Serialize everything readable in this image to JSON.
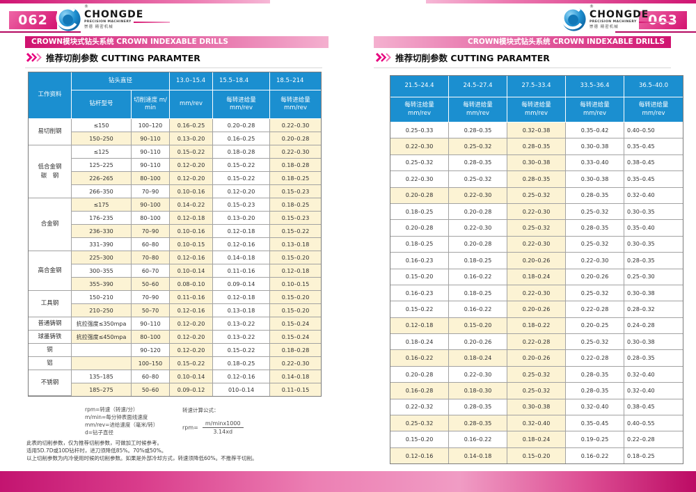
{
  "brand": {
    "reg": "®",
    "name": "CHONGDE",
    "sub": "PRECISION MACHINERY",
    "cn": "崇德 精密机械"
  },
  "left_page": {
    "page_number": "062",
    "section_title": "CROWN模块式钻头系统  CROWN INDEXABLE DRILLS",
    "heading": "推荐切削参数 CUTTING PARAMTER",
    "table": {
      "corner_header": "工作资料",
      "diameter_header": "钻头直径",
      "range_headers": [
        "13.0–15.4",
        "15.5–18.4",
        "18.5–214"
      ],
      "sub_headers": [
        "钻杆型号",
        "切削速度  m/\nmin",
        "mm/rev",
        "每转进给量\nmm/rev",
        "每转进给量\nmm/rev"
      ],
      "groups": [
        {
          "material": "易切削钢",
          "rows": [
            {
              "cells": [
                "≤150",
                "100–120",
                "0.16–0.25",
                "0.20–0.28",
                "0.22–0.30"
              ],
              "shaded": false
            },
            {
              "cells": [
                "150–250",
                "90–110",
                "0.13–0.20",
                "0.16–0.25",
                "0.20–0.28"
              ],
              "shaded": true
            }
          ]
        },
        {
          "material": "低合金钢\n碳　钢",
          "rows": [
            {
              "cells": [
                "≤125",
                "90–110",
                "0.15–0.22",
                "0.18–0.28",
                "0.22–0.30"
              ],
              "shaded": false
            },
            {
              "cells": [
                "125–225",
                "90–110",
                "0.12–0.20",
                "0.15–0.22",
                "0.18–0.28"
              ],
              "shaded": false
            },
            {
              "cells": [
                "226–265",
                "80–100",
                "0.12–0.20",
                "0.15–0.22",
                "0.18–0.25"
              ],
              "shaded": true
            },
            {
              "cells": [
                "266–350",
                "70–90",
                "0.10–0.16",
                "0.12–0.20",
                "0.15–0.23"
              ],
              "shaded": false
            }
          ]
        },
        {
          "material": "合金钢",
          "rows": [
            {
              "cells": [
                "≤175",
                "90–100",
                "0.14–0.22",
                "0.15–0.23",
                "0.18–0.25"
              ],
              "shaded": true
            },
            {
              "cells": [
                "176–235",
                "80–100",
                "0.12–0.18",
                "0.13–0.20",
                "0.15–0.23"
              ],
              "shaded": false
            },
            {
              "cells": [
                "236–330",
                "70–90",
                "0.10–0.16",
                "0.12–0.18",
                "0.15–0.22"
              ],
              "shaded": true
            },
            {
              "cells": [
                "331–390",
                "60–80",
                "0.10–0.15",
                "0.12–0.16",
                "0.13–0.18"
              ],
              "shaded": false
            }
          ]
        },
        {
          "material": "高合金钢",
          "rows": [
            {
              "cells": [
                "225–300",
                "70–80",
                "0.12–0.16",
                "0.14–0.18",
                "0.15–0.20"
              ],
              "shaded": true
            },
            {
              "cells": [
                "300–355",
                "60–70",
                "0.10–0.14",
                "0.11–0.16",
                "0.12–0.18"
              ],
              "shaded": false
            },
            {
              "cells": [
                "355–390",
                "50–60",
                "0.08–0.10",
                "0.09–0.14",
                "0.10–0.15"
              ],
              "shaded": true
            }
          ]
        },
        {
          "material": "工具钢",
          "rows": [
            {
              "cells": [
                "150–210",
                "70–90",
                "0.11–0.16",
                "0.12–0.18",
                "0.15–0.20"
              ],
              "shaded": false
            },
            {
              "cells": [
                "210–250",
                "50–70",
                "0.12–0.16",
                "0.13–0.18",
                "0.15–0.20"
              ],
              "shaded": true
            }
          ]
        },
        {
          "material": "普通铸钢",
          "rows": [
            {
              "cells": [
                "抗拉强度≤350mpa",
                "90–110",
                "0.12–0.20",
                "0.13–0.22",
                "0.15–0.24"
              ],
              "shaded": false
            }
          ]
        },
        {
          "material": "球墨铸铁",
          "rows": [
            {
              "cells": [
                "抗拉强度≤450mpa",
                "80–100",
                "0.12–0.20",
                "0.13–0.22",
                "0.15–0.24"
              ],
              "shaded": true
            }
          ]
        },
        {
          "material": "铜",
          "rows": [
            {
              "cells": [
                "",
                "90–120",
                "0.12–0.20",
                "0.15–0.22",
                "0.18–0.28"
              ],
              "shaded": false
            }
          ]
        },
        {
          "material": "铝",
          "rows": [
            {
              "cells": [
                "",
                "100–150",
                "0.15–0.22",
                "0.18–0.25",
                "0.22–0.30"
              ],
              "shaded": true
            }
          ]
        },
        {
          "material": "不锈钢",
          "rows": [
            {
              "cells": [
                "135–185",
                "60–80",
                "0.10–0.14",
                "0.12–0.16",
                "0.14–0.18"
              ],
              "shaded": false
            },
            {
              "cells": [
                "185–275",
                "50–60",
                "0.09–0.12",
                "010–0.14",
                "0.11–0.15"
              ],
              "shaded": true
            }
          ]
        }
      ]
    },
    "legend": [
      "rpm=转速（转速/分）",
      "m/min=每分钟表面线速度",
      "mm/rev=进给速度（毫米/转）",
      "d=钻子直径"
    ],
    "formula": {
      "title": "转速计算公式：",
      "lhs": "rpm=",
      "numerator": "m/minx1000",
      "denominator": "3.14xd"
    },
    "notes": [
      "此表的切削参数，仅为推荐切削参数，可做加工时候参考。",
      "适用5D.7D或10D钻杆时，进刀须降低85%。70%或50%。",
      "以上切削参数为内冷使用时候的切削参数。如果是外部冷却方式，转速须降低60%。不推荐干切削。"
    ]
  },
  "right_page": {
    "page_number": "063",
    "section_title": "CROWN模块式钻头系统  CROWN INDEXABLE DRILLS",
    "heading": "推荐切削参数 CUTTING PARAMTER",
    "table": {
      "range_headers": [
        "21.5–24.4",
        "24.5–27.4",
        "27.5–33.4",
        "33.5–36.4",
        "36.5–40.0"
      ],
      "sub_headers": [
        "每转注给量\nmm/rev",
        "每转进给量\nmm/rev",
        "每转进给量\nmm/rev",
        "每转进给量\nmm/rev",
        "每转进给量\nmm/rev"
      ],
      "rows": [
        {
          "cells": [
            "0.25–0.33",
            "0.28–0.35",
            "0.32–0.38",
            "0.35–0.42",
            "0.40–0.50"
          ],
          "shaded": false
        },
        {
          "cells": [
            "0.22–0.30",
            "0.25–0.32",
            "0.28–0.35",
            "0.30–0.38",
            "0.35–0.45"
          ],
          "shaded": true
        },
        {
          "cells": [
            "0.25–0.32",
            "0.28–0.35",
            "0.30–0.38",
            "0.33–0.40",
            "0.38–0.45"
          ],
          "shaded": false
        },
        {
          "cells": [
            "0.22–0.30",
            "0.25–0.32",
            "0.28–0.35",
            "0.30–0.38",
            "0.35–0.45"
          ],
          "shaded": false
        },
        {
          "cells": [
            "0.20–0.28",
            "0.22–0.30",
            "0.25–0.32",
            "0.28–0.35",
            "0.32–0.40"
          ],
          "shaded": true
        },
        {
          "cells": [
            "0.18–0.25",
            "0.20–0.28",
            "0.22–0.30",
            "0.25–0.32",
            "0.30–0.35"
          ],
          "shaded": false
        },
        {
          "cells": [
            "0.20–0.28",
            "0.22–0.30",
            "0.25–0.32",
            "0.28–0.35",
            "0.35–0.40"
          ],
          "shaded": false
        },
        {
          "cells": [
            "0.18–0.25",
            "0.20–0.28",
            "0.22–0.30",
            "0.25–0.32",
            "0.30–0.35"
          ],
          "shaded": false
        },
        {
          "cells": [
            "0.16–0.23",
            "0.18–0.25",
            "0.20–0.26",
            "0.22–0.30",
            "0.28–0.35"
          ],
          "shaded": false
        },
        {
          "cells": [
            "0.15–0.20",
            "0.16–0.22",
            "0.18–0.24",
            "0.20–0.26",
            "0.25–0.30"
          ],
          "shaded": false
        },
        {
          "cells": [
            "0.16–0.23",
            "0.18–0.25",
            "0.22–0.30",
            "0.25–0.32",
            "0.30–0.38"
          ],
          "shaded": false
        },
        {
          "cells": [
            "0.15–0.22",
            "0.16–0.22",
            "0.20–0.26",
            "0.22–0.28",
            "0.28–0.32"
          ],
          "shaded": false
        },
        {
          "cells": [
            "0.12–0.18",
            "0.15–0.20",
            "0.18–0.22",
            "0.20–0.25",
            "0.24–0.28"
          ],
          "shaded": true
        },
        {
          "cells": [
            "0.18–0.24",
            "0.20–0.26",
            "0.22–0.28",
            "0.25–0.32",
            "0.30–0.38"
          ],
          "shaded": false
        },
        {
          "cells": [
            "0.16–0.22",
            "0.18–0.24",
            "0.20–0.26",
            "0.22–0.28",
            "0.28–0.35"
          ],
          "shaded": true
        },
        {
          "cells": [
            "0.20–0.28",
            "0.22–0.30",
            "0.25–0.32",
            "0.28–0.35",
            "0.32–0.40"
          ],
          "shaded": false
        },
        {
          "cells": [
            "0.16–0.28",
            "0.18–0.30",
            "0.25–0.32",
            "0.28–0.35",
            "0.32–0.40"
          ],
          "shaded": true
        },
        {
          "cells": [
            "0.22–0.32",
            "0.28–0.35",
            "0.30–0.38",
            "0.32–0.40",
            "0.38–0.45"
          ],
          "shaded": false
        },
        {
          "cells": [
            "0.25–0.32",
            "0.28–0.35",
            "0.32–0.40",
            "0.35–0.45",
            "0.40–0.55"
          ],
          "shaded": true
        },
        {
          "cells": [
            "0.15–0.20",
            "0.16–0.22",
            "0.18–0.24",
            "0.19–0.25",
            "0.22–0.28"
          ],
          "shaded": false
        },
        {
          "cells": [
            "0.12–0.16",
            "0.14–0.18",
            "0.15–0.20",
            "0.16–0.22",
            "0.18–0.25"
          ],
          "shaded": true
        }
      ]
    }
  },
  "colors": {
    "magenta": "#e6007e",
    "bar_gradient_dark": "#d0126f",
    "bar_gradient_light": "#f4b0cf",
    "header_blue": "#1b8fd0",
    "cell_cream": "#fcf3d4"
  }
}
